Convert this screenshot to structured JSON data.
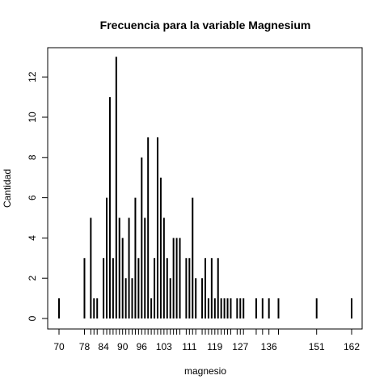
{
  "chart_data": {
    "type": "bar",
    "title": "Frecuencia para la variable Magnesium",
    "xlabel": "magnesio",
    "ylabel": "Cantidad",
    "x_tick_labels": [
      70,
      78,
      84,
      90,
      96,
      103,
      111,
      119,
      127,
      136,
      151,
      162
    ],
    "y_ticks": [
      0,
      2,
      4,
      6,
      8,
      10,
      12
    ],
    "ylim": [
      0,
      13
    ],
    "categories": [
      70,
      78,
      80,
      81,
      82,
      84,
      85,
      86,
      87,
      88,
      89,
      90,
      91,
      92,
      93,
      94,
      95,
      96,
      97,
      98,
      99,
      100,
      101,
      102,
      103,
      104,
      105,
      106,
      107,
      108,
      110,
      111,
      112,
      113,
      115,
      116,
      117,
      118,
      119,
      120,
      121,
      122,
      123,
      124,
      126,
      127,
      128,
      132,
      134,
      136,
      139,
      151,
      162
    ],
    "values": [
      1,
      3,
      5,
      1,
      1,
      3,
      6,
      11,
      3,
      13,
      5,
      4,
      2,
      5,
      2,
      6,
      3,
      8,
      5,
      9,
      1,
      3,
      9,
      7,
      5,
      3,
      2,
      4,
      4,
      4,
      3,
      3,
      6,
      2,
      2,
      3,
      1,
      3,
      1,
      3,
      1,
      1,
      1,
      1,
      1,
      1,
      1,
      1,
      1,
      1,
      1,
      1,
      1
    ],
    "grid": false
  }
}
